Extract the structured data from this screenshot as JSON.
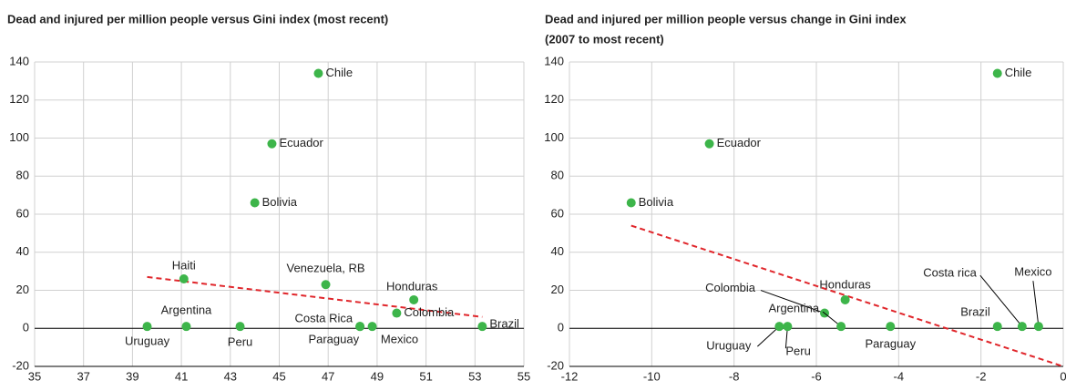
{
  "chart_data": [
    {
      "type": "scatter",
      "title": [
        "Dead and injured per million people versus Gini index (most recent)"
      ],
      "labels": [
        "Chile",
        "Ecuador",
        "Bolivia",
        "Haiti",
        "Venezuela, RB",
        "Honduras",
        "Colombia",
        "Argentina",
        "Uruguay",
        "Peru",
        "Costa Rica",
        "Paraguay",
        "Mexico",
        "Brazil"
      ],
      "x": [
        46.6,
        44.7,
        44.0,
        41.1,
        46.9,
        50.5,
        49.8,
        41.2,
        39.6,
        43.4,
        48.3,
        48.3,
        48.8,
        53.3
      ],
      "y": [
        134,
        97,
        66,
        26,
        23,
        15,
        8,
        1,
        1,
        1,
        1,
        1,
        1,
        1
      ],
      "color": "#3db54a",
      "trend": {
        "x": [
          39.6,
          53.3
        ],
        "y": [
          27,
          6
        ],
        "color": "#e0262b"
      },
      "xlim": [
        35,
        55
      ],
      "xticks": [
        35,
        37,
        39,
        41,
        43,
        45,
        47,
        49,
        51,
        53,
        55
      ],
      "ylim": [
        -20,
        140
      ],
      "yticks": [
        -20,
        0,
        20,
        40,
        60,
        80,
        100,
        120,
        140
      ],
      "grid": true
    },
    {
      "type": "scatter",
      "title": [
        "Dead and injured per million people versus change in Gini index",
        "(2007 to most recent)"
      ],
      "labels": [
        "Chile",
        "Ecuador",
        "Bolivia",
        "Honduras",
        "Colombia",
        "Argentina",
        "Uruguay",
        "Peru",
        "Paraguay",
        "Brazil",
        "Costa rica",
        "Mexico"
      ],
      "x": [
        -1.6,
        -8.6,
        -10.5,
        -5.3,
        -5.8,
        -5.4,
        -6.9,
        -6.7,
        -4.2,
        -1.6,
        -1.0,
        -0.6
      ],
      "y": [
        134,
        97,
        66,
        15,
        8,
        1,
        1,
        1,
        1,
        1,
        1,
        1
      ],
      "color": "#3db54a",
      "trend": {
        "x": [
          -10.5,
          0
        ],
        "y": [
          54,
          -20
        ],
        "color": "#e0262b"
      },
      "xlim": [
        -12,
        0
      ],
      "xticks": [
        -12,
        -10,
        -8,
        -6,
        -4,
        -2,
        0
      ],
      "ylim": [
        -20,
        140
      ],
      "yticks": [
        -20,
        0,
        20,
        40,
        60,
        80,
        100,
        120,
        140
      ],
      "grid": true
    }
  ]
}
